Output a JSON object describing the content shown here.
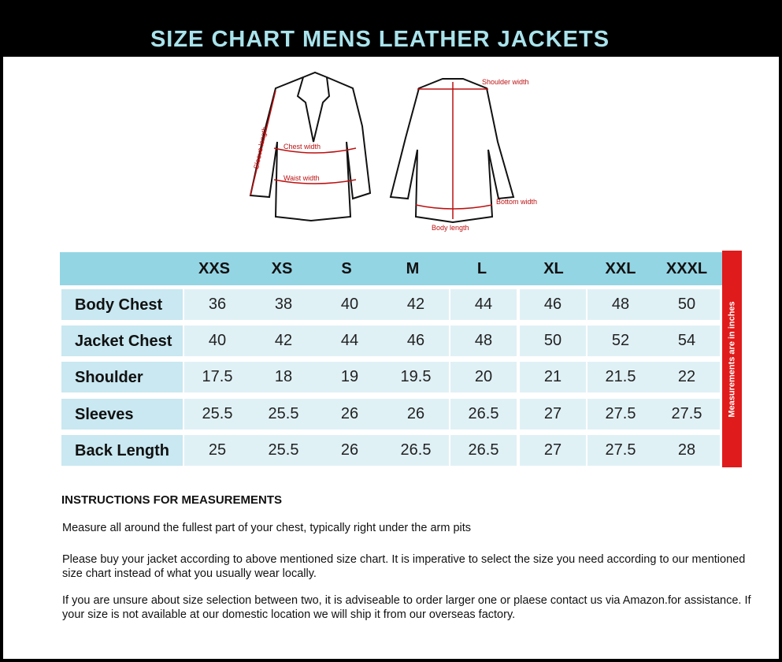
{
  "title": "SIZE CHART MENS LEATHER JACKETS",
  "diagram": {
    "labels": {
      "sleeve": "Sleeve length",
      "chest": "Chest width",
      "waist": "Waist width",
      "shoulder": "Shoulder width",
      "bottom": "Bottom width",
      "body": "Body length"
    }
  },
  "table": {
    "sizes": [
      "XXS",
      "XS",
      "S",
      "M",
      "L",
      "XL",
      "XXL",
      "XXXL"
    ],
    "rows": [
      {
        "label": "Body Chest",
        "values": [
          "36",
          "38",
          "40",
          "42",
          "44",
          "46",
          "48",
          "50"
        ]
      },
      {
        "label": "Jacket Chest",
        "values": [
          "40",
          "42",
          "44",
          "46",
          "48",
          "50",
          "52",
          "54"
        ]
      },
      {
        "label": "Shoulder",
        "values": [
          "17.5",
          "18",
          "19",
          "19.5",
          "20",
          "21",
          "21.5",
          "22"
        ]
      },
      {
        "label": "Sleeves",
        "values": [
          "25.5",
          "25.5",
          "26",
          "26",
          "26.5",
          "27",
          "27.5",
          "27.5"
        ]
      },
      {
        "label": "Back Length",
        "values": [
          "25",
          "25.5",
          "26",
          "26.5",
          "26.5",
          "27",
          "27.5",
          "28"
        ]
      }
    ],
    "side_note": "Measurements are in inches",
    "colors": {
      "header": "#94d5e4",
      "cell": "#e0f1f6",
      "label_cell": "#c9e8f1",
      "side_bar": "#e01b1b"
    }
  },
  "instructions": {
    "heading": "INSTRUCTIONS FOR MEASUREMENTS",
    "paragraphs": [
      "Measure all around the fullest part of your chest, typically right under the arm pits",
      "Please buy your jacket according to above mentioned size chart. It is imperative to select the size you need according to our mentioned size chart instead of what you  usually wear locally.",
      "If you are unsure about size selection between two, it is adviseable to order larger one or plaese contact us via Amazon.for assistance. If your size is not available at our domestic location we will ship it from our overseas factory."
    ]
  },
  "title_color": "#a9e3ec"
}
